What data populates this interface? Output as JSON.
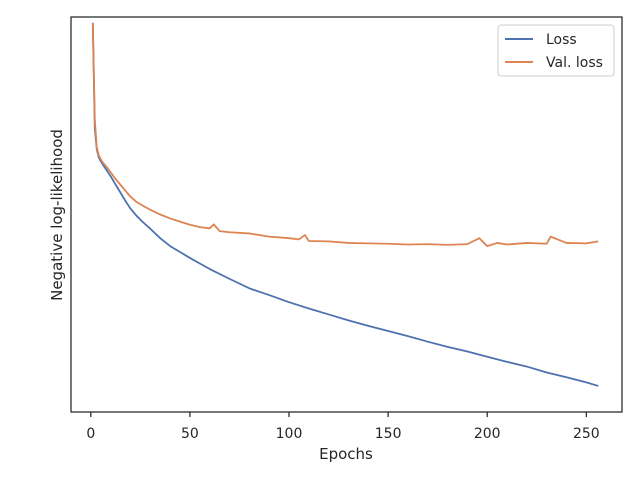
{
  "chart_data": {
    "type": "line",
    "title": "",
    "xlabel": "Epochs",
    "ylabel": "Negative log-likelihood",
    "xlim": [
      -10,
      268
    ],
    "ylim": [
      0,
      1
    ],
    "x_ticks": [
      0,
      50,
      100,
      150,
      200,
      250
    ],
    "y_ticks_visible": false,
    "grid": false,
    "legend": {
      "position": "top-right"
    },
    "series": [
      {
        "name": "Loss",
        "color": "#4c72b0",
        "x": [
          1,
          2,
          3,
          4,
          5,
          6,
          8,
          10,
          12,
          15,
          18,
          20,
          23,
          26,
          30,
          35,
          40,
          45,
          50,
          55,
          60,
          70,
          80,
          90,
          100,
          110,
          120,
          130,
          140,
          150,
          160,
          170,
          180,
          190,
          200,
          210,
          220,
          230,
          240,
          250,
          256
        ],
        "y": [
          0.985,
          0.72,
          0.665,
          0.645,
          0.635,
          0.627,
          0.612,
          0.597,
          0.58,
          0.555,
          0.53,
          0.515,
          0.497,
          0.482,
          0.464,
          0.44,
          0.42,
          0.405,
          0.39,
          0.376,
          0.362,
          0.337,
          0.313,
          0.296,
          0.278,
          0.262,
          0.247,
          0.232,
          0.218,
          0.205,
          0.192,
          0.178,
          0.165,
          0.153,
          0.14,
          0.127,
          0.115,
          0.1,
          0.088,
          0.075,
          0.066
        ]
      },
      {
        "name": "Val. loss",
        "color": "#dd8452",
        "x": [
          1,
          2,
          3,
          4,
          5,
          6,
          8,
          10,
          12,
          15,
          18,
          20,
          23,
          26,
          30,
          35,
          40,
          45,
          50,
          55,
          60,
          62,
          65,
          70,
          80,
          90,
          100,
          105,
          108,
          110,
          120,
          130,
          140,
          150,
          160,
          170,
          180,
          190,
          196,
          200,
          205,
          210,
          220,
          230,
          232,
          240,
          250,
          256
        ],
        "y": [
          0.985,
          0.74,
          0.67,
          0.65,
          0.64,
          0.632,
          0.62,
          0.607,
          0.593,
          0.575,
          0.557,
          0.545,
          0.532,
          0.523,
          0.512,
          0.5,
          0.49,
          0.482,
          0.474,
          0.468,
          0.465,
          0.475,
          0.458,
          0.455,
          0.452,
          0.444,
          0.44,
          0.437,
          0.448,
          0.433,
          0.432,
          0.428,
          0.427,
          0.426,
          0.424,
          0.425,
          0.423,
          0.425,
          0.44,
          0.42,
          0.428,
          0.424,
          0.428,
          0.426,
          0.444,
          0.428,
          0.427,
          0.432
        ]
      }
    ]
  }
}
